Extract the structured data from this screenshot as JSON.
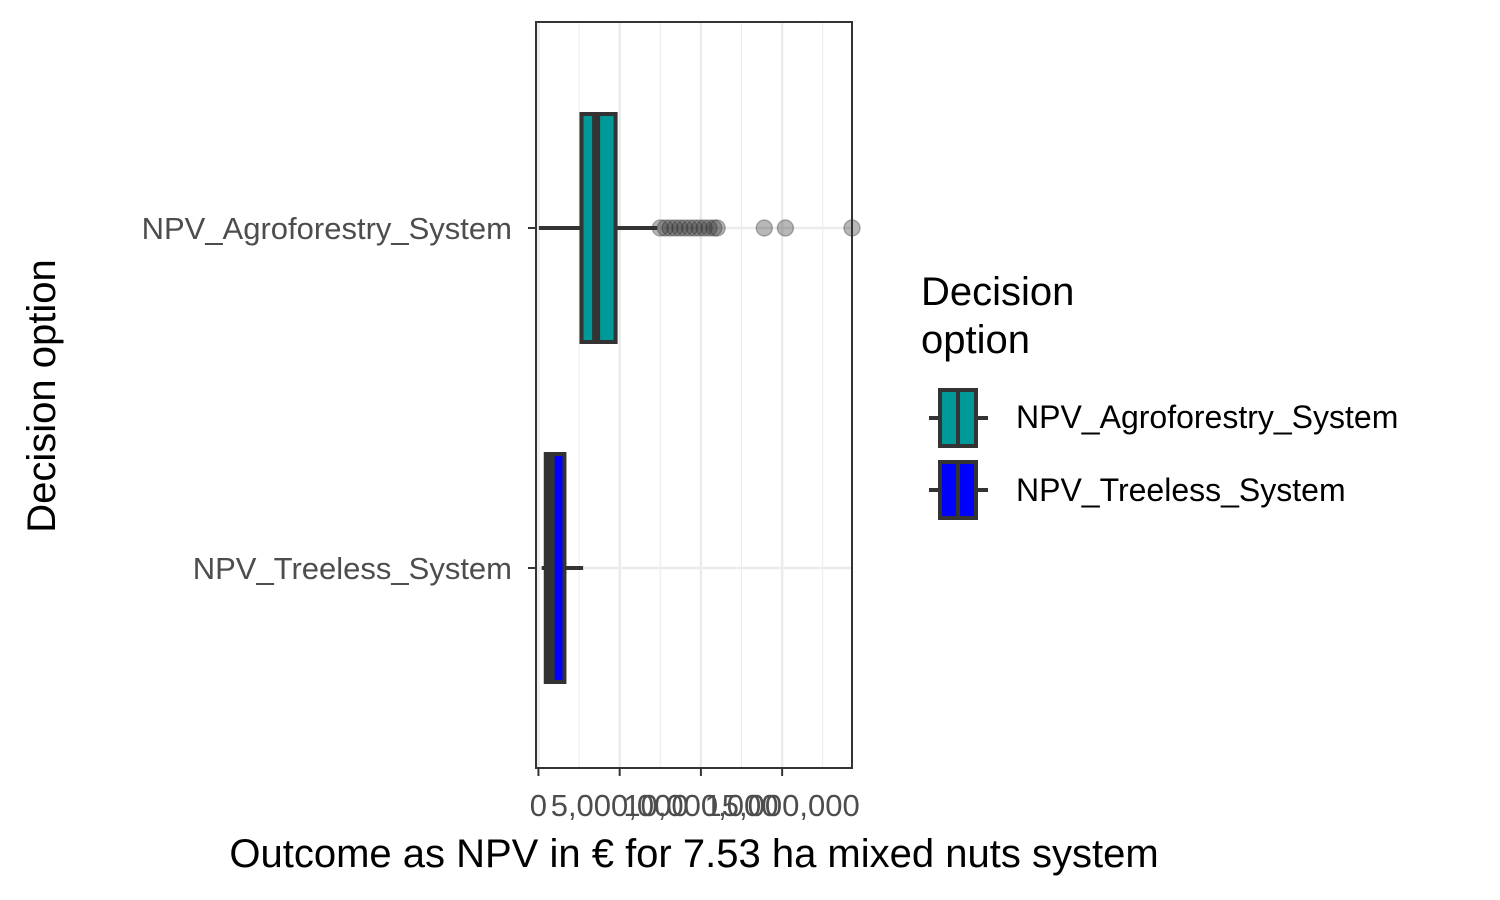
{
  "chart_data": {
    "type": "boxplot",
    "orientation": "horizontal",
    "xlabel": "Outcome as NPV in € for 7.53 ha mixed nuts system",
    "ylabel": "Decision option",
    "x_ticks": [
      0,
      5000000,
      10000000,
      15000000
    ],
    "x_tick_labels": [
      "0",
      "5,000,000",
      "10,000,000",
      "15,000,000"
    ],
    "xlim": [
      -150000,
      19300000
    ],
    "grid": true,
    "legend": {
      "title": "Decision option",
      "placement": "right",
      "entries": [
        "NPV_Agroforestry_System",
        "NPV_Treeless_System"
      ]
    },
    "series": [
      {
        "name": "NPV_Agroforestry_System",
        "color": "#009999",
        "whisker_low": 30000,
        "q1": 2650000,
        "median": 3550000,
        "q3": 4750000,
        "whisker_high": 7300000,
        "outliers": [
          7500000,
          7800000,
          8100000,
          8400000,
          8700000,
          9000000,
          9300000,
          9600000,
          9900000,
          10200000,
          10500000,
          10800000,
          11000000,
          13900000,
          15200000,
          19300000
        ]
      },
      {
        "name": "NPV_Treeless_System",
        "color": "#0000ff",
        "whisker_low": 200000,
        "q1": 450000,
        "median": 750000,
        "q3": 1600000,
        "whisker_high": 2750000,
        "outliers": []
      }
    ]
  }
}
